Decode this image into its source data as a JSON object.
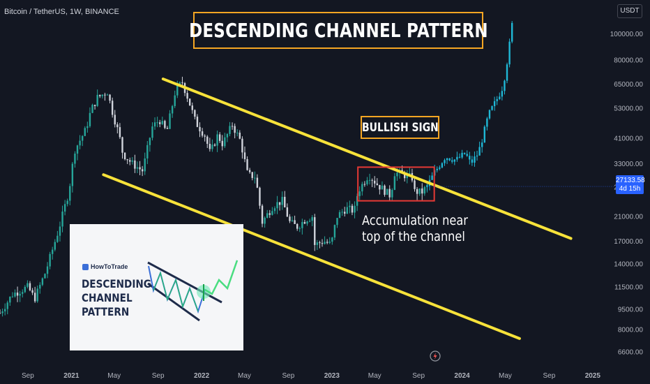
{
  "header": {
    "symbol": "Bitcoin / TetherUS, 1W, BINANCE",
    "currency": "USDT"
  },
  "annotations": {
    "title": "DESCENDING CHANNEL PATTERN",
    "bullish": "BULLISH SIGN",
    "accumulation_line1": "Accumulation near",
    "accumulation_line2": "top of the channel"
  },
  "price_tag": {
    "price": "27133.58",
    "countdown": "4d 15h"
  },
  "inset": {
    "brand": "HowToTrade",
    "title_lines": [
      "DESCENDING",
      "CHANNEL",
      "PATTERN"
    ]
  },
  "colors": {
    "background": "#131722",
    "up": "#26a69a",
    "down": "#d1d4dc",
    "projection": "#1fb8d6",
    "channel": "#f7e23a",
    "highlight_box": "#e53935",
    "label_border": "#f5a623",
    "price_tag": "#2962ff"
  },
  "chart_data": {
    "type": "candlestick",
    "title": "DESCENDING CHANNEL PATTERN",
    "y_scale": "log",
    "ylim": [
      6000,
      115000
    ],
    "y_ticks": [
      "100000.00",
      "80000.00",
      "65000.00",
      "53000.00",
      "41000.00",
      "33000.00",
      "27000.00",
      "21000.00",
      "17000.00",
      "14000.00",
      "11500.00",
      "9500.00",
      "8000.00",
      "6600.00"
    ],
    "x_range": [
      "2020-06-15",
      "2025-03-01"
    ],
    "x_ticks": [
      {
        "label": "Sep",
        "date": "2020-09-01"
      },
      {
        "label": "2021",
        "date": "2021-01-01"
      },
      {
        "label": "May",
        "date": "2021-05-01"
      },
      {
        "label": "Sep",
        "date": "2021-09-01"
      },
      {
        "label": "2022",
        "date": "2022-01-01"
      },
      {
        "label": "May",
        "date": "2022-05-01"
      },
      {
        "label": "Sep",
        "date": "2022-09-01"
      },
      {
        "label": "2023",
        "date": "2023-01-01"
      },
      {
        "label": "May",
        "date": "2023-05-01"
      },
      {
        "label": "Sep",
        "date": "2023-09-01"
      },
      {
        "label": "2024",
        "date": "2024-01-01"
      },
      {
        "label": "May",
        "date": "2024-05-01"
      },
      {
        "label": "Sep",
        "date": "2024-09-01"
      },
      {
        "label": "2025",
        "date": "2025-01-01"
      }
    ],
    "path_actual": [
      [
        "2020-06-15",
        9200
      ],
      [
        "2020-07-20",
        10800
      ],
      [
        "2020-09-01",
        11500
      ],
      [
        "2020-09-20",
        10400
      ],
      [
        "2020-10-20",
        13000
      ],
      [
        "2020-11-25",
        18500
      ],
      [
        "2020-12-25",
        26000
      ],
      [
        "2021-01-10",
        37000
      ],
      [
        "2021-02-10",
        44000
      ],
      [
        "2021-02-25",
        52000
      ],
      [
        "2021-03-15",
        58000
      ],
      [
        "2021-04-12",
        61000
      ],
      [
        "2021-04-25",
        52000
      ],
      [
        "2021-05-15",
        42000
      ],
      [
        "2021-05-25",
        36000
      ],
      [
        "2021-06-20",
        33000
      ],
      [
        "2021-07-20",
        31000
      ],
      [
        "2021-08-15",
        45000
      ],
      [
        "2021-09-05",
        48000
      ],
      [
        "2021-09-25",
        43000
      ],
      [
        "2021-10-20",
        62000
      ],
      [
        "2021-11-08",
        66000
      ],
      [
        "2021-11-25",
        57000
      ],
      [
        "2021-12-15",
        47000
      ],
      [
        "2022-01-10",
        42000
      ],
      [
        "2022-01-25",
        36000
      ],
      [
        "2022-02-15",
        42000
      ],
      [
        "2022-03-01",
        39000
      ],
      [
        "2022-03-28",
        46000
      ],
      [
        "2022-04-20",
        40000
      ],
      [
        "2022-05-10",
        30000
      ],
      [
        "2022-06-01",
        29500
      ],
      [
        "2022-06-20",
        20000
      ],
      [
        "2022-07-20",
        23000
      ],
      [
        "2022-08-15",
        24000
      ],
      [
        "2022-09-05",
        20000
      ],
      [
        "2022-09-25",
        19200
      ],
      [
        "2022-10-20",
        20500
      ],
      [
        "2022-11-07",
        21000
      ],
      [
        "2022-11-14",
        16500
      ],
      [
        "2022-12-10",
        17000
      ],
      [
        "2022-12-30",
        16500
      ],
      [
        "2023-01-15",
        21000
      ],
      [
        "2023-02-10",
        22500
      ],
      [
        "2023-03-05",
        22000
      ],
      [
        "2023-03-15",
        26000
      ],
      [
        "2023-04-14",
        30000
      ],
      [
        "2023-05-10",
        27500
      ],
      [
        "2023-06-15",
        25000
      ],
      [
        "2023-06-25",
        30500
      ],
      [
        "2023-07-15",
        30200
      ],
      [
        "2023-08-15",
        29200
      ],
      [
        "2023-08-20",
        26000
      ],
      [
        "2023-09-10",
        25800
      ],
      [
        "2023-09-25",
        27133
      ]
    ],
    "path_projection": [
      [
        "2023-09-25",
        27133
      ],
      [
        "2023-10-15",
        30500
      ],
      [
        "2023-11-15",
        35000
      ],
      [
        "2023-12-15",
        34000
      ],
      [
        "2024-01-10",
        36000
      ],
      [
        "2024-01-25",
        33000
      ],
      [
        "2024-02-15",
        36000
      ],
      [
        "2024-02-25",
        40000
      ],
      [
        "2024-03-15",
        50000
      ],
      [
        "2024-04-10",
        58000
      ],
      [
        "2024-04-25",
        64000
      ],
      [
        "2024-05-10",
        85000
      ],
      [
        "2024-05-20",
        108000
      ]
    ],
    "series": [
      {
        "name": "",
        "points": [
          [
            "2021-04-01",
            30000
          ],
          [
            "2024-06-10",
            7400
          ]
        ]
      },
      {
        "name": "",
        "points": [
          [
            "2021-09-15",
            68000
          ],
          [
            "2024-11-01",
            17400
          ]
        ]
      }
    ],
    "highlight_range": {
      "x": [
        "2023-03-15",
        "2023-10-15"
      ],
      "y": [
        24000,
        32000
      ]
    },
    "last_price": 27133.58
  }
}
